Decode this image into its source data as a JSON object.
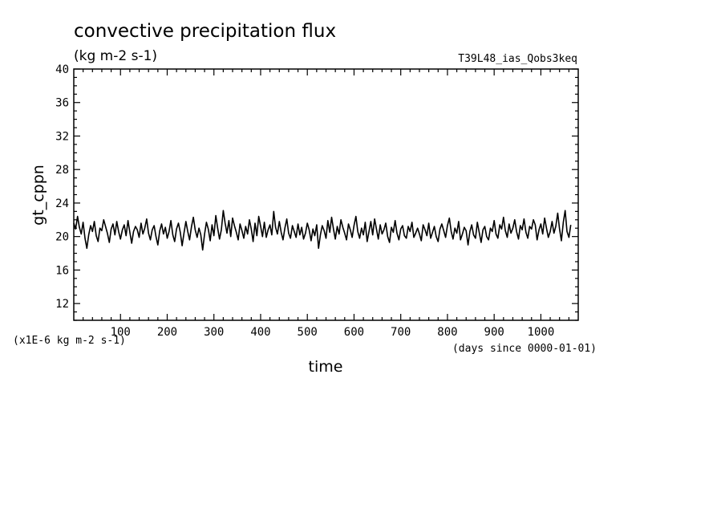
{
  "chart_data": {
    "type": "line",
    "title": "convective precipitation flux",
    "units": "(kg m-2 s-1)",
    "experiment": "T39L48_ias_Qobs3keq",
    "xlabel": "time",
    "ylabel": "gt_cppn",
    "x_units_note": "(days since 0000-01-01)",
    "y_scale_note": "(x1E-6 kg m-2 s-1)",
    "xlim": [
      0,
      1080
    ],
    "ylim": [
      10,
      40
    ],
    "x_ticks": [
      "100",
      "200",
      "300",
      "400",
      "500",
      "600",
      "700",
      "800",
      "900",
      "1000"
    ],
    "y_ticks": [
      "12",
      "16",
      "20",
      "24",
      "28",
      "32",
      "36",
      "40"
    ],
    "grid": false,
    "series": [
      {
        "x_step": 4,
        "x_start": 0,
        "values": [
          21.6,
          20.9,
          22.4,
          21.1,
          20.3,
          21.7,
          19.8,
          18.6,
          20.2,
          21.3,
          20.6,
          21.8,
          20.1,
          19.4,
          21.0,
          20.7,
          22.0,
          21.2,
          20.4,
          19.3,
          20.9,
          21.5,
          20.2,
          21.8,
          20.6,
          19.7,
          20.8,
          21.4,
          20.1,
          21.9,
          20.5,
          19.2,
          20.6,
          21.2,
          20.8,
          19.9,
          21.6,
          20.3,
          21.0,
          22.1,
          20.4,
          19.6,
          20.8,
          21.3,
          20.0,
          19.0,
          20.7,
          21.5,
          20.3,
          21.1,
          19.8,
          20.6,
          21.9,
          20.2,
          19.4,
          20.9,
          21.6,
          20.5,
          18.9,
          20.4,
          21.8,
          20.6,
          19.6,
          21.2,
          22.3,
          20.8,
          19.9,
          21.0,
          20.2,
          18.4,
          20.3,
          21.7,
          20.9,
          19.5,
          21.4,
          20.1,
          22.5,
          21.0,
          19.7,
          20.8,
          23.1,
          21.6,
          20.4,
          21.9,
          20.0,
          22.2,
          21.3,
          20.5,
          19.6,
          21.5,
          20.7,
          19.8,
          21.2,
          20.3,
          22.0,
          20.9,
          19.4,
          21.6,
          20.1,
          22.4,
          21.2,
          20.0,
          21.7,
          19.9,
          20.8,
          21.4,
          20.2,
          23.0,
          21.1,
          20.3,
          21.8,
          20.5,
          19.6,
          21.0,
          22.1,
          20.4,
          19.8,
          21.3,
          20.6,
          19.9,
          21.5,
          20.2,
          21.1,
          19.7,
          20.4,
          21.6,
          20.8,
          19.5,
          20.9,
          20.1,
          21.4,
          18.6,
          20.2,
          21.3,
          20.7,
          19.8,
          21.9,
          20.5,
          22.3,
          20.9,
          19.7,
          21.2,
          20.3,
          22.0,
          21.1,
          20.4,
          19.6,
          21.5,
          20.8,
          19.9,
          21.3,
          22.4,
          20.6,
          19.8,
          21.0,
          20.2,
          21.7,
          19.4,
          20.6,
          21.8,
          20.2,
          22.1,
          20.9,
          19.7,
          21.4,
          20.3,
          20.8,
          21.6,
          20.0,
          19.3,
          21.1,
          20.5,
          21.9,
          20.4,
          19.6,
          20.9,
          21.3,
          20.1,
          19.8,
          21.2,
          20.6,
          21.7,
          19.9,
          20.4,
          21.0,
          20.3,
          19.5,
          21.4,
          20.8,
          20.1,
          21.6,
          19.8,
          20.5,
          21.2,
          20.0,
          19.4,
          20.9,
          21.5,
          20.7,
          19.9,
          21.3,
          22.2,
          20.6,
          19.7,
          21.0,
          20.4,
          21.8,
          19.6,
          20.3,
          21.1,
          20.7,
          19.0,
          20.6,
          21.4,
          20.2,
          19.8,
          21.7,
          20.5,
          19.3,
          20.8,
          21.2,
          20.0,
          19.6,
          21.0,
          20.6,
          21.9,
          20.3,
          19.8,
          21.4,
          20.9,
          22.3,
          20.7,
          19.9,
          21.5,
          20.4,
          21.0,
          22.0,
          20.6,
          19.7,
          21.3,
          20.8,
          22.1,
          20.5,
          19.8,
          21.2,
          20.9,
          22.0,
          21.4,
          19.6,
          20.8,
          21.5,
          20.3,
          22.2,
          21.0,
          19.9,
          20.6,
          21.8,
          20.4,
          21.2,
          22.8,
          20.9,
          19.5,
          21.7,
          23.1,
          20.6,
          19.9,
          21.4
        ]
      }
    ]
  }
}
